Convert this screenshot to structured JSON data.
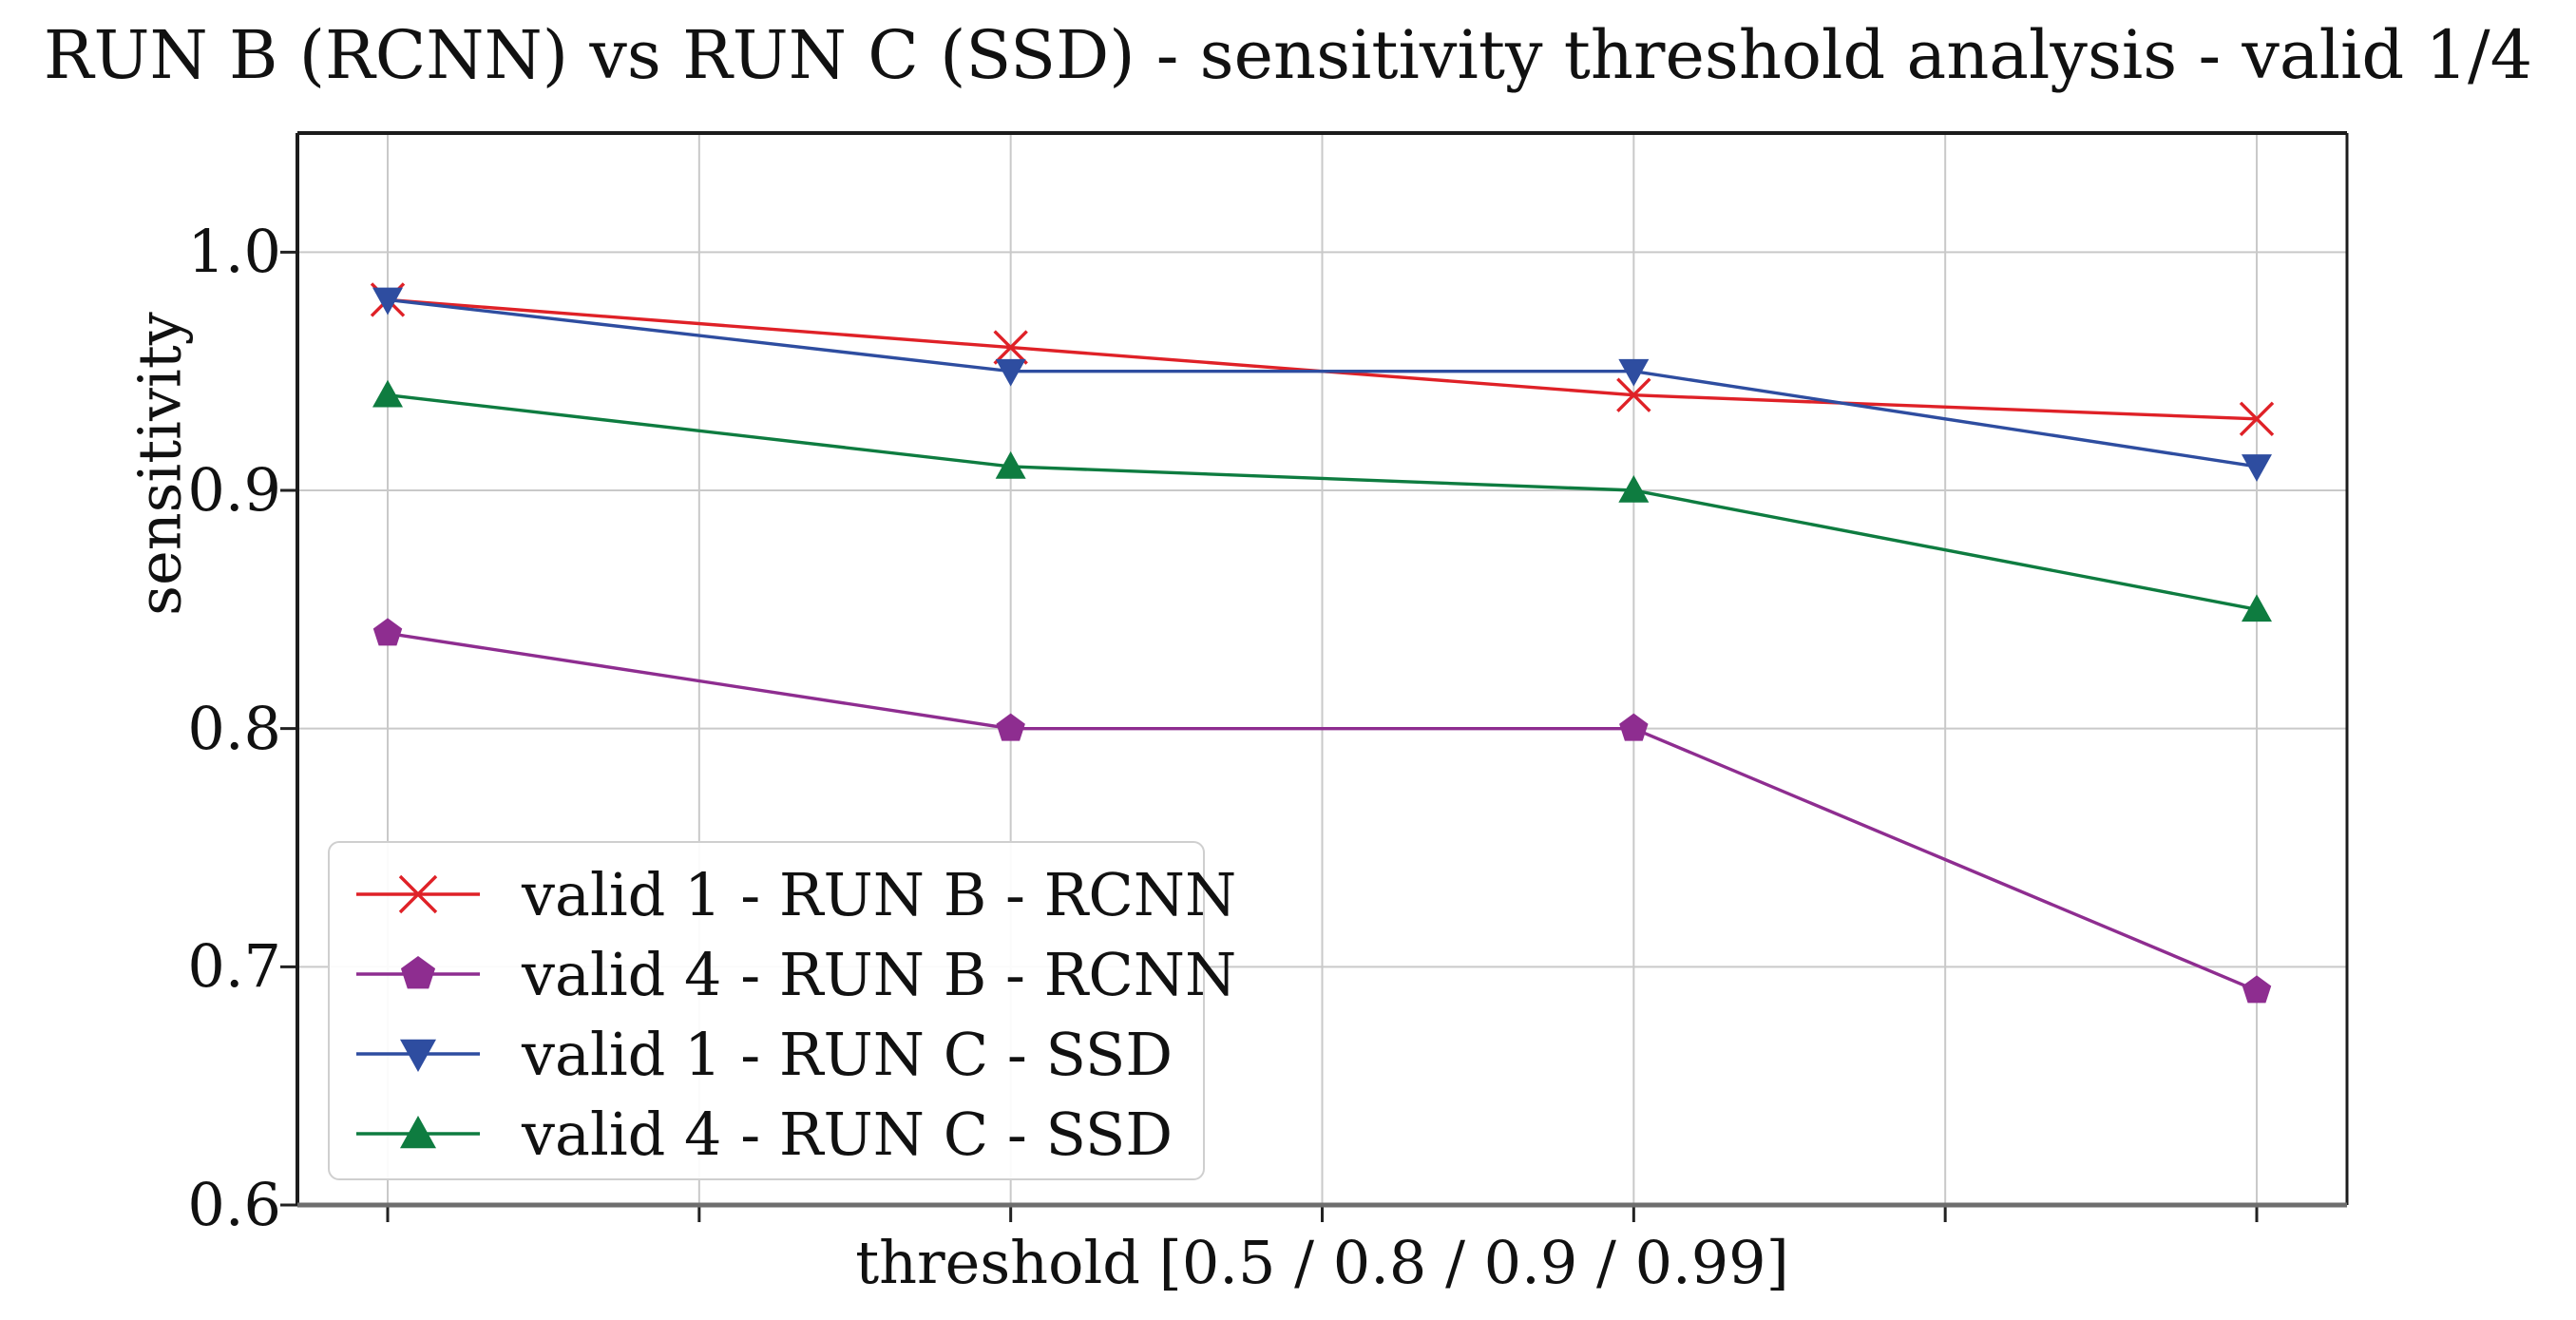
{
  "chart_data": {
    "type": "line",
    "title": "RUN B (RCNN) vs RUN C (SSD) - sensitivity threshold analysis - valid 1/4",
    "xlabel": "threshold [0.5 / 0.8 / 0.9 / 0.99]",
    "ylabel": "sensitivity",
    "x_categories": [
      "0.5",
      "0.8",
      "0.9",
      "0.99"
    ],
    "ylim": [
      0.6,
      1.05
    ],
    "yticks": [
      1.0,
      0.9,
      0.8,
      0.7,
      0.6
    ],
    "ytick_labels": [
      "1.0",
      "0.9",
      "0.8",
      "0.7",
      "0.6"
    ],
    "grid": true,
    "legend_position": "lower-left",
    "series": [
      {
        "name": "valid 1 - RUN B - RCNN",
        "marker": "x",
        "color": "#df2127",
        "values": [
          0.98,
          0.96,
          0.94,
          0.93
        ]
      },
      {
        "name": "valid 4 - RUN B - RCNN",
        "marker": "pentagon",
        "color": "#8e2d90",
        "values": [
          0.84,
          0.8,
          0.8,
          0.69
        ]
      },
      {
        "name": "valid 1 - RUN C - SSD",
        "marker": "triangle-down",
        "color": "#2e4da0",
        "values": [
          0.98,
          0.95,
          0.95,
          0.91
        ]
      },
      {
        "name": "valid 4 - RUN C - SSD",
        "marker": "triangle-up",
        "color": "#0e7c40",
        "values": [
          0.94,
          0.91,
          0.9,
          0.85
        ]
      }
    ],
    "colors": {
      "grid": "#c9c9c9",
      "spine": "#1c1c1c",
      "bottom_spine": "#6e6e6e",
      "tick": "#222222",
      "legend_border": "#cfcfcf",
      "text": "#111111",
      "background": "#ffffff"
    }
  }
}
